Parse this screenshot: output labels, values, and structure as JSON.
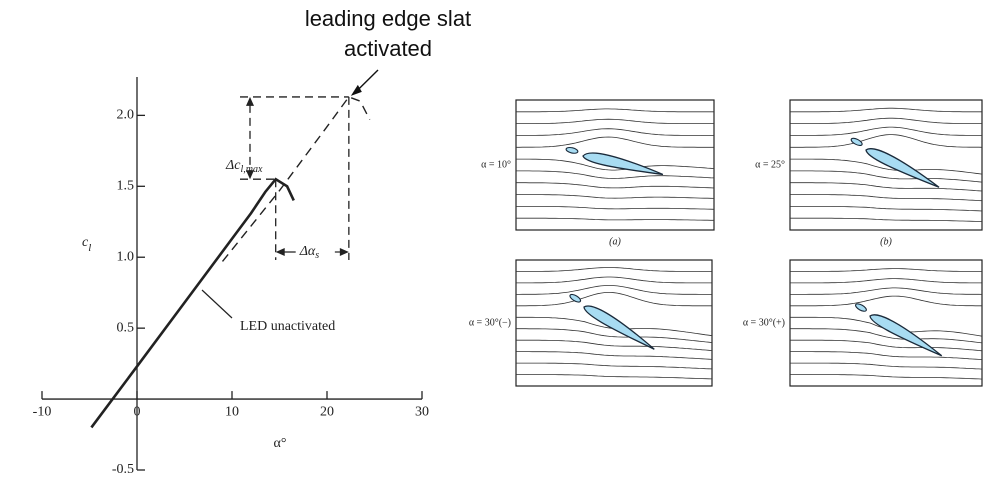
{
  "chart_data": {
    "type": "line",
    "xlabel": "α°",
    "ylabel": {
      "text": "c",
      "sub": "l"
    },
    "xlim": [
      -10,
      30
    ],
    "xticks": [
      -10,
      0,
      10,
      20,
      30
    ],
    "ylim": [
      -0.5,
      2.2
    ],
    "yticks": [
      -0.5,
      0.5,
      {
        "value": 1,
        "label": "1.0"
      },
      1.5,
      {
        "value": 2,
        "label": "2.0"
      }
    ],
    "series": [
      {
        "name": "LED unactivated",
        "color": "#222222",
        "style": "solid",
        "x": [
          -4.8,
          0,
          5,
          10,
          12,
          13.5,
          14.6,
          15.8,
          16.5
        ],
        "values": [
          -0.2,
          0.23,
          0.68,
          1.13,
          1.31,
          1.46,
          1.55,
          1.5,
          1.4
        ]
      },
      {
        "name": "leading edge slat activated",
        "color": "#222222",
        "style": "dashed",
        "x": [
          9,
          15,
          20,
          22.3,
          23.5,
          24.5
        ],
        "values": [
          0.97,
          1.47,
          1.92,
          2.13,
          2.1,
          1.97
        ]
      }
    ],
    "delta_cl": {
      "text": "Δc",
      "sub": "l,max"
    },
    "delta_alpha": {
      "text": "Δα",
      "sub": "s"
    }
  },
  "diagrams": {
    "panels": [
      {
        "label": "α = 10°",
        "caption": "(a)"
      },
      {
        "label": "α = 25°",
        "caption": "(b)"
      },
      {
        "label": "α = 30°(−)"
      },
      {
        "label": "α = 30°(+)"
      }
    ]
  }
}
